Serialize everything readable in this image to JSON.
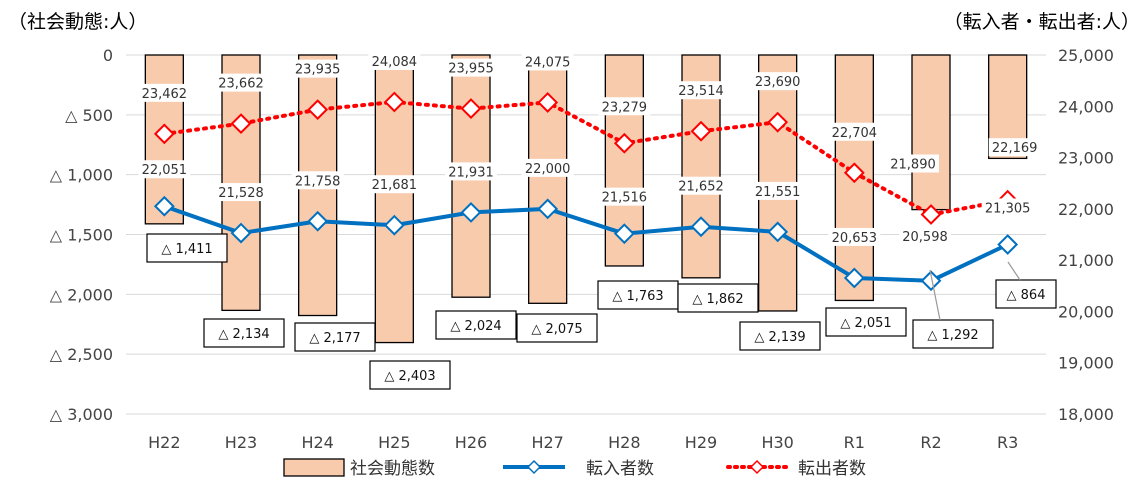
{
  "chart_data": {
    "type": "bar+line",
    "categories": [
      "H22",
      "H23",
      "H24",
      "H25",
      "H26",
      "H27",
      "H28",
      "H29",
      "H30",
      "R1",
      "R2",
      "R3"
    ],
    "left_axis": {
      "title": "（社会動態:人）",
      "ticks": [
        "0",
        "△ 500",
        "△ 1,000",
        "△ 1,500",
        "△ 2,000",
        "△ 2,500",
        "△ 3,000"
      ],
      "range": [
        0,
        -3000
      ]
    },
    "right_axis": {
      "title": "（転入者・転出者:人）",
      "ticks": [
        "25,000",
        "24,000",
        "23,000",
        "22,000",
        "21,000",
        "20,000",
        "19,000",
        "18,000"
      ],
      "range": [
        18000,
        25000
      ]
    },
    "series": [
      {
        "name": "社会動態数",
        "kind": "bar",
        "axis": "left",
        "color": "#F8CBAD",
        "values": [
          -1411,
          -2134,
          -2177,
          -2403,
          -2024,
          -2075,
          -1763,
          -1862,
          -2139,
          -2051,
          -1292,
          -864
        ],
        "labels": [
          "△ 1,411",
          "△ 2,134",
          "△ 2,177",
          "△ 2,403",
          "△ 2,024",
          "△ 2,075",
          "△ 1,763",
          "△ 1,862",
          "△ 2,139",
          "△ 2,051",
          "△ 1,292",
          "△ 864"
        ]
      },
      {
        "name": "転入者数",
        "kind": "line",
        "axis": "right",
        "color": "#0070C0",
        "values": [
          22051,
          21528,
          21758,
          21681,
          21931,
          22000,
          21516,
          21652,
          21551,
          20653,
          20598,
          21305
        ],
        "labels": [
          "22,051",
          "21,528",
          "21,758",
          "21,681",
          "21,931",
          "22,000",
          "21,516",
          "21,652",
          "21,551",
          "20,653",
          "20,598",
          "21,305"
        ]
      },
      {
        "name": "転出者数",
        "kind": "line-dotted",
        "axis": "right",
        "color": "#FF0000",
        "values": [
          23462,
          23662,
          23935,
          24084,
          23955,
          24075,
          23279,
          23514,
          23690,
          22704,
          21890,
          22169
        ],
        "labels": [
          "23,462",
          "23,662",
          "23,935",
          "24,084",
          "23,955",
          "24,075",
          "23,279",
          "23,514",
          "23,690",
          "22,704",
          "21,890",
          "22,169"
        ]
      }
    ],
    "legend": "bottom",
    "grid": true
  }
}
